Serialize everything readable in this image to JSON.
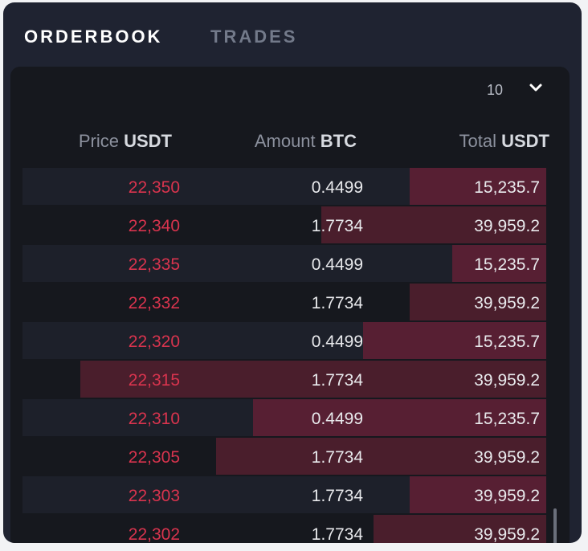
{
  "tabs": [
    {
      "label": "ORDERBOOK",
      "active": true
    },
    {
      "label": "TRADES",
      "active": false
    }
  ],
  "depth_select": {
    "value": "10"
  },
  "columns": [
    {
      "label": "Price",
      "unit": "USDT"
    },
    {
      "label": "Amount",
      "unit": "BTC"
    },
    {
      "label": "Total",
      "unit": "USDT"
    }
  ],
  "rows": [
    {
      "price": "22,350",
      "amount": "0.4499",
      "total": "15,235.7",
      "depth": 0.26
    },
    {
      "price": "22,340",
      "amount": "1.7734",
      "total": "39,959.2",
      "depth": 0.43
    },
    {
      "price": "22,335",
      "amount": "0.4499",
      "total": "15,235.7",
      "depth": 0.18
    },
    {
      "price": "22,332",
      "amount": "1.7734",
      "total": "39,959.2",
      "depth": 0.26
    },
    {
      "price": "22,320",
      "amount": "0.4499",
      "total": "15,235.7",
      "depth": 0.35
    },
    {
      "price": "22,315",
      "amount": "1.7734",
      "total": "39,959.2",
      "depth": 0.89
    },
    {
      "price": "22,310",
      "amount": "0.4499",
      "total": "15,235.7",
      "depth": 0.56
    },
    {
      "price": "22,305",
      "amount": "1.7734",
      "total": "39,959.2",
      "depth": 0.63
    },
    {
      "price": "22,303",
      "amount": "1.7734",
      "total": "39,959.2",
      "depth": 0.26
    },
    {
      "price": "22,302",
      "amount": "1.7734",
      "total": "39,959.2",
      "depth": 0.33
    }
  ],
  "colors": {
    "panel_bg": "#1f2331",
    "table_bg": "#16181e",
    "ask_price": "#d9344e",
    "depth_bar": "#571f33"
  },
  "icons": {
    "depth_dropdown": "chevron-down-icon"
  }
}
